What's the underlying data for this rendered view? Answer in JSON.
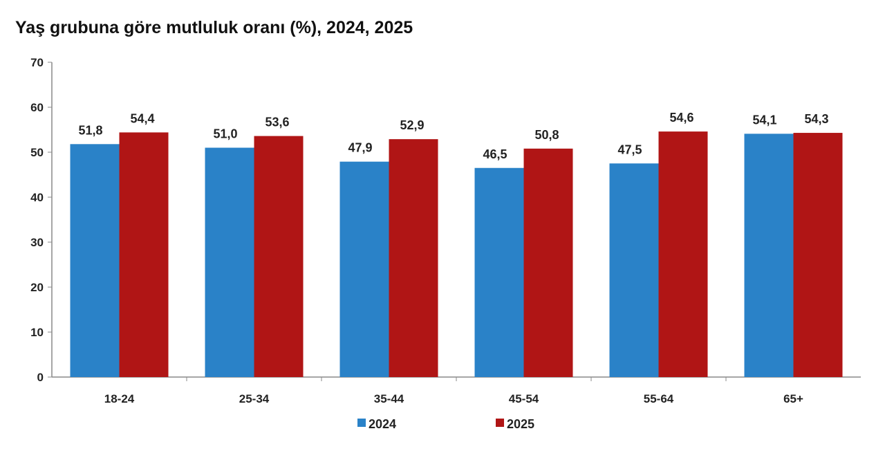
{
  "chart_data": {
    "type": "bar",
    "title": "Yaş grubuna göre mutluluk oranı (%), 2024, 2025",
    "xlabel": "",
    "ylabel": "",
    "ylim": [
      0,
      70
    ],
    "yticks": [
      "0",
      "10",
      "20",
      "30",
      "40",
      "50",
      "60",
      "70"
    ],
    "categories": [
      "18-24",
      "25-34",
      "35-44",
      "45-54",
      "55-64",
      "65+"
    ],
    "series": [
      {
        "name": "2024",
        "color": "#2a82c8",
        "values": [
          51.8,
          51.0,
          47.9,
          46.5,
          47.5,
          54.1
        ],
        "labels": [
          "51,8",
          "51,0",
          "47,9",
          "46,5",
          "47,5",
          "54,1"
        ]
      },
      {
        "name": "2025",
        "color": "#b01515",
        "values": [
          54.4,
          53.6,
          52.9,
          50.8,
          54.6,
          54.3
        ],
        "labels": [
          "54,4",
          "53,6",
          "52,9",
          "50,8",
          "54,6",
          "54,3"
        ]
      }
    ],
    "grid": false,
    "legend": "bottom"
  }
}
